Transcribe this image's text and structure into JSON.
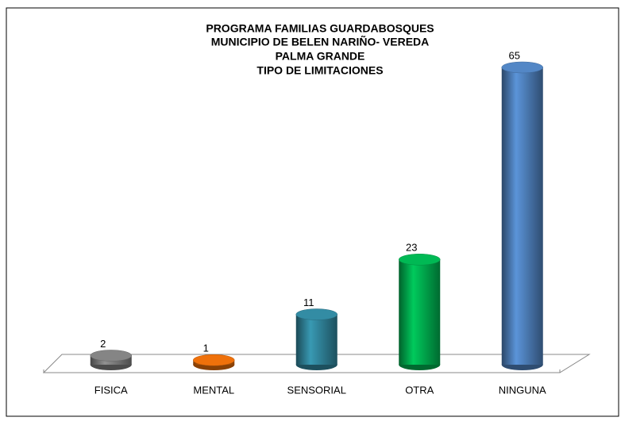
{
  "chart_data": {
    "type": "bar",
    "title": [
      "PROGRAMA FAMILIAS GUARDABOSQUES",
      "MUNICIPIO DE BELEN NARIÑO- VEREDA",
      "PALMA GRANDE",
      "TIPO DE LIMITACIONES"
    ],
    "categories": [
      "FISICA",
      "MENTAL",
      "SENSORIAL",
      "OTRA",
      "NINGUNA"
    ],
    "values": [
      2,
      1,
      11,
      23,
      65
    ],
    "colors": [
      "#7f7f7f",
      "#e46c0a",
      "#31859c",
      "#00b050",
      "#4f81bd"
    ]
  }
}
